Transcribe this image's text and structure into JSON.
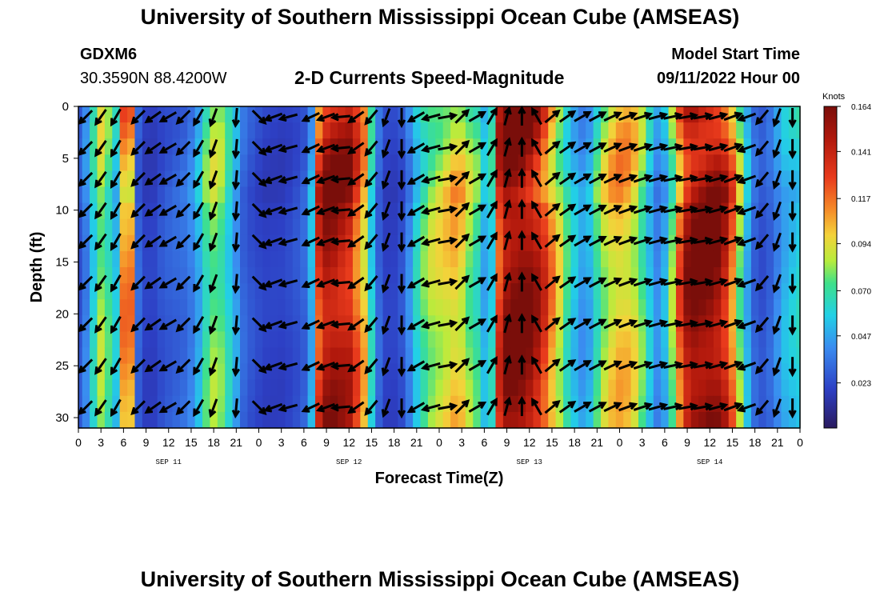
{
  "header": {
    "title": "University of Southern Mississippi Ocean Cube (AMSEAS)",
    "station": "GDXM6",
    "coords": "30.3590N  88.4200W",
    "subtitle": "2-D Currents Speed-Magnitude",
    "model_start_label": "Model Start Time",
    "model_start_value": "09/11/2022 Hour 00"
  },
  "footer": {
    "title": "University of Southern Mississippi Ocean Cube (AMSEAS)"
  },
  "chart_data": {
    "type": "heatmap",
    "title": "2-D Currents Speed-Magnitude",
    "xlabel": "Forecast Time(Z)",
    "ylabel": "Depth (ft)",
    "x_range_hours": [
      0,
      96
    ],
    "y_range_ft": [
      0,
      31
    ],
    "x_tick_hours": [
      0,
      3,
      6,
      9,
      12,
      15,
      18,
      21,
      24,
      27,
      30,
      33,
      36,
      39,
      42,
      45,
      48,
      51,
      54,
      57,
      60,
      63,
      66,
      69,
      72,
      75,
      78,
      81,
      84,
      87,
      90,
      93,
      96
    ],
    "x_tick_labels": [
      "0",
      "3",
      "6",
      "9",
      "12",
      "15",
      "18",
      "21",
      "0",
      "3",
      "6",
      "9",
      "12",
      "15",
      "18",
      "21",
      "0",
      "3",
      "6",
      "9",
      "12",
      "15",
      "18",
      "21",
      "0",
      "3",
      "6",
      "9",
      "12",
      "15",
      "18",
      "21",
      "0"
    ],
    "y_ticks": [
      0,
      5,
      10,
      15,
      20,
      25,
      30
    ],
    "y_tick_labels": [
      "0",
      "5",
      "10",
      "15",
      "20",
      "25",
      "30"
    ],
    "day_labels": [
      {
        "label": "SEP 11",
        "hour": 12
      },
      {
        "label": "SEP 12",
        "hour": 36
      },
      {
        "label": "SEP 13",
        "hour": 60
      },
      {
        "label": "SEP 14",
        "hour": 84
      }
    ],
    "colorbar": {
      "unit": "Knots",
      "min": 0.0,
      "max": 0.164,
      "ticks": [
        "0.164",
        "0.141",
        "0.117",
        "0.094",
        "0.070",
        "0.047",
        "0.023"
      ],
      "tick_values": [
        0.164,
        0.141,
        0.117,
        0.094,
        0.07,
        0.047,
        0.023
      ]
    },
    "speed_profile_hours": [
      0,
      1,
      2,
      3,
      4,
      5,
      6,
      7,
      8,
      9,
      10,
      11,
      12,
      13,
      14,
      15,
      16,
      17,
      18,
      19,
      20,
      21,
      22,
      23,
      24,
      25,
      26,
      27,
      28,
      29,
      30,
      31,
      32,
      33,
      34,
      35,
      36,
      37,
      38,
      39,
      40,
      41,
      42,
      43,
      44,
      45,
      46,
      47,
      48,
      49,
      50,
      51,
      52,
      53,
      54,
      55,
      56,
      57,
      58,
      59,
      60,
      61,
      62,
      63,
      64,
      65,
      66,
      67,
      68,
      69,
      70,
      71,
      72,
      73,
      74,
      75,
      76,
      77,
      78,
      79,
      80,
      81,
      82,
      83,
      84,
      85,
      86,
      87,
      88,
      89,
      90,
      91,
      92,
      93,
      94,
      95,
      96
    ],
    "speed_profile_knots": [
      0.025,
      0.038,
      0.06,
      0.082,
      0.07,
      0.055,
      0.11,
      0.11,
      0.03,
      0.02,
      0.02,
      0.025,
      0.028,
      0.03,
      0.032,
      0.038,
      0.05,
      0.07,
      0.08,
      0.075,
      0.06,
      0.045,
      0.03,
      0.025,
      0.022,
      0.02,
      0.02,
      0.02,
      0.022,
      0.025,
      0.03,
      0.05,
      0.13,
      0.15,
      0.15,
      0.145,
      0.14,
      0.12,
      0.1,
      0.06,
      0.03,
      0.02,
      0.02,
      0.025,
      0.04,
      0.06,
      0.075,
      0.085,
      0.09,
      0.095,
      0.1,
      0.095,
      0.08,
      0.07,
      0.05,
      0.06,
      0.13,
      0.155,
      0.16,
      0.16,
      0.155,
      0.145,
      0.13,
      0.11,
      0.09,
      0.07,
      0.055,
      0.045,
      0.05,
      0.07,
      0.085,
      0.095,
      0.1,
      0.098,
      0.09,
      0.075,
      0.055,
      0.04,
      0.05,
      0.08,
      0.12,
      0.15,
      0.16,
      0.16,
      0.16,
      0.155,
      0.14,
      0.115,
      0.08,
      0.05,
      0.03,
      0.025,
      0.03,
      0.04,
      0.05,
      0.055,
      0.06
    ],
    "vector_columns_hours": [
      1,
      3,
      5,
      8,
      10,
      12,
      14,
      16,
      18,
      21,
      24,
      26,
      28,
      31,
      33,
      35,
      37,
      39,
      41,
      43,
      45,
      47,
      49,
      51,
      53,
      55,
      57,
      59,
      61,
      63,
      65,
      67,
      69,
      71,
      73,
      75,
      77,
      79,
      81,
      83,
      85,
      87,
      89,
      91,
      93,
      95
    ],
    "vector_rows_ft": [
      1,
      4,
      7,
      10,
      13,
      17,
      21,
      25,
      29
    ],
    "vector_angles_deg": [
      225,
      235,
      240,
      225,
      215,
      210,
      225,
      240,
      250,
      265,
      315,
      200,
      195,
      205,
      200,
      185,
      215,
      230,
      250,
      270,
      210,
      195,
      10,
      45,
      30,
      60,
      75,
      90,
      120,
      40,
      35,
      30,
      28,
      25,
      20,
      18,
      15,
      12,
      10,
      10,
      15,
      20,
      200,
      230,
      250,
      270
    ]
  }
}
